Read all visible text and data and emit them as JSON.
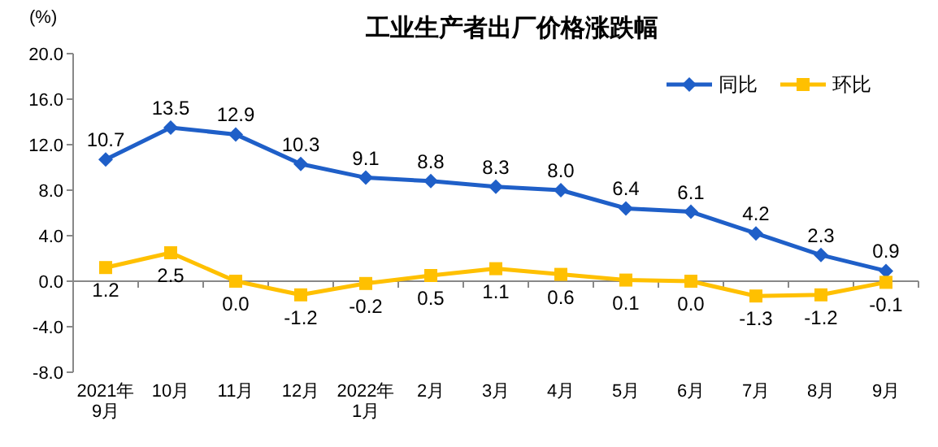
{
  "chart_data": {
    "type": "line",
    "title": "工业生产者出厂价格涨跌幅",
    "ylabel": "(%)",
    "categories": [
      "2021年\n9月",
      "10月",
      "11月",
      "12月",
      "2022年\n1月",
      "2月",
      "3月",
      "4月",
      "5月",
      "6月",
      "7月",
      "8月",
      "9月"
    ],
    "series": [
      {
        "name": "同比",
        "color": "#1f5fc8",
        "marker": "diamond",
        "values": [
          10.7,
          13.5,
          12.9,
          10.3,
          9.1,
          8.8,
          8.3,
          8.0,
          6.4,
          6.1,
          4.2,
          2.3,
          0.9
        ],
        "value_labels": [
          "10.7",
          "13.5",
          "12.9",
          "10.3",
          "9.1",
          "8.8",
          "8.3",
          "8.0",
          "6.4",
          "6.1",
          "4.2",
          "2.3",
          "0.9"
        ]
      },
      {
        "name": "环比",
        "color": "#ffc000",
        "marker": "square",
        "values": [
          1.2,
          2.5,
          0.0,
          -1.2,
          -0.2,
          0.5,
          1.1,
          0.6,
          0.1,
          0.0,
          -1.3,
          -1.2,
          -0.1
        ],
        "value_labels": [
          "1.2",
          "2.5",
          "0.0",
          "-1.2",
          "-0.2",
          "0.5",
          "1.1",
          "0.6",
          "0.1",
          "0.0",
          "-1.3",
          "-1.2",
          "-0.1"
        ]
      }
    ],
    "ylim": [
      -8,
      20
    ],
    "yticks": [
      {
        "value": -8,
        "label": "-8.0"
      },
      {
        "value": -4,
        "label": "-4.0"
      },
      {
        "value": 0,
        "label": "0.0"
      },
      {
        "value": 4,
        "label": "4.0"
      },
      {
        "value": 8,
        "label": "8.0"
      },
      {
        "value": 12,
        "label": "12.0"
      },
      {
        "value": 16,
        "label": "16.0"
      },
      {
        "value": 20,
        "label": "20.0"
      }
    ],
    "legend": "top right"
  }
}
